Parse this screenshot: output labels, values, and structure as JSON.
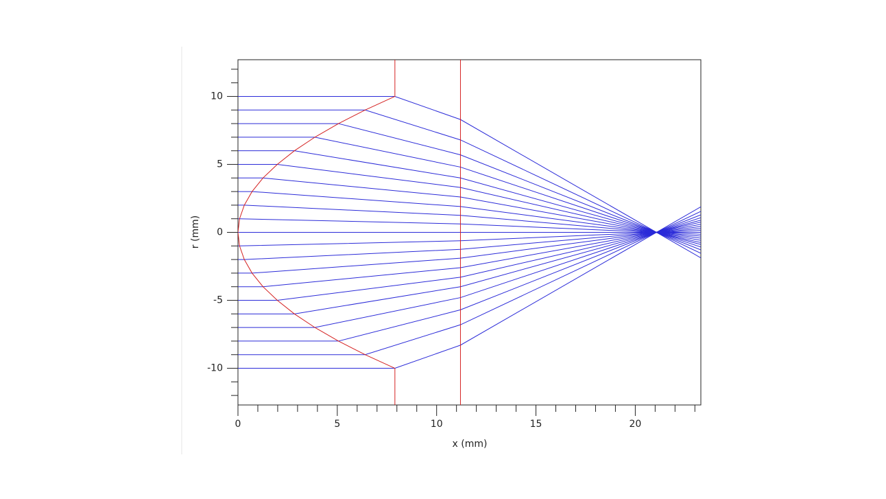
{
  "chart_data": {
    "type": "line",
    "xlabel": "x (mm)",
    "ylabel": "r (mm)",
    "xlim": [
      0,
      23.3
    ],
    "ylim": [
      -12.7,
      12.7
    ],
    "xticks": [
      0,
      5,
      10,
      15,
      20
    ],
    "yticks": [
      -10,
      -5,
      0,
      5,
      10
    ],
    "xminorticks": [
      1,
      2,
      3,
      4,
      6,
      7,
      8,
      9,
      11,
      12,
      13,
      14,
      16,
      17,
      18,
      19,
      21,
      22,
      23
    ],
    "yminorticks": [
      -12,
      -11,
      -9,
      -8,
      -7,
      -6,
      -4,
      -3,
      -2,
      -1,
      1,
      2,
      3,
      4,
      6,
      7,
      8,
      9,
      11,
      12
    ],
    "series": [
      {
        "color": "#2a2ad8",
        "x": [
          0,
          7.9,
          11.2,
          23.3
        ],
        "values": [
          10,
          10,
          8.3,
          -1.88
        ]
      },
      {
        "color": "#2a2ad8",
        "x": [
          0,
          6.4,
          11.2,
          23.3
        ],
        "values": [
          9,
          9,
          6.8,
          -1.54
        ]
      },
      {
        "color": "#2a2ad8",
        "x": [
          0,
          5.06,
          11.2,
          23.3
        ],
        "values": [
          8,
          8,
          5.7,
          -1.29
        ]
      },
      {
        "color": "#2a2ad8",
        "x": [
          0,
          3.87,
          11.2,
          23.3
        ],
        "values": [
          7,
          7,
          4.8,
          -1.08
        ]
      },
      {
        "color": "#2a2ad8",
        "x": [
          0,
          2.84,
          11.2,
          23.3
        ],
        "values": [
          6,
          6,
          4.0,
          -0.9
        ]
      },
      {
        "color": "#2a2ad8",
        "x": [
          0,
          1.98,
          11.2,
          23.3
        ],
        "values": [
          5,
          5,
          3.3,
          -0.75
        ]
      },
      {
        "color": "#2a2ad8",
        "x": [
          0,
          1.26,
          11.2,
          23.3
        ],
        "values": [
          4,
          4,
          2.6,
          -0.59
        ]
      },
      {
        "color": "#2a2ad8",
        "x": [
          0,
          0.71,
          11.2,
          23.3
        ],
        "values": [
          3,
          3,
          1.9,
          -0.43
        ]
      },
      {
        "color": "#2a2ad8",
        "x": [
          0,
          0.32,
          11.2,
          23.3
        ],
        "values": [
          2,
          2,
          1.25,
          -0.28
        ]
      },
      {
        "color": "#2a2ad8",
        "x": [
          0,
          0.08,
          11.2,
          23.3
        ],
        "values": [
          1,
          1,
          0.62,
          -0.14
        ]
      },
      {
        "color": "#2a2ad8",
        "x": [
          0,
          0,
          11.2,
          23.3
        ],
        "values": [
          0,
          0,
          0,
          0
        ]
      },
      {
        "color": "#2a2ad8",
        "x": [
          0,
          0.08,
          11.2,
          23.3
        ],
        "values": [
          -1,
          -1,
          -0.62,
          0.14
        ]
      },
      {
        "color": "#2a2ad8",
        "x": [
          0,
          0.32,
          11.2,
          23.3
        ],
        "values": [
          -2,
          -2,
          -1.25,
          0.28
        ]
      },
      {
        "color": "#2a2ad8",
        "x": [
          0,
          0.71,
          11.2,
          23.3
        ],
        "values": [
          -3,
          -3,
          -1.9,
          0.43
        ]
      },
      {
        "color": "#2a2ad8",
        "x": [
          0,
          1.26,
          11.2,
          23.3
        ],
        "values": [
          -4,
          -4,
          -2.6,
          0.59
        ]
      },
      {
        "color": "#2a2ad8",
        "x": [
          0,
          1.98,
          11.2,
          23.3
        ],
        "values": [
          -5,
          -5,
          -3.3,
          0.75
        ]
      },
      {
        "color": "#2a2ad8",
        "x": [
          0,
          2.84,
          11.2,
          23.3
        ],
        "values": [
          -6,
          -6,
          -4.0,
          0.9
        ]
      },
      {
        "color": "#2a2ad8",
        "x": [
          0,
          3.87,
          11.2,
          23.3
        ],
        "values": [
          -7,
          -7,
          -4.8,
          1.08
        ]
      },
      {
        "color": "#2a2ad8",
        "x": [
          0,
          5.06,
          11.2,
          23.3
        ],
        "values": [
          -8,
          -8,
          -5.7,
          1.29
        ]
      },
      {
        "color": "#2a2ad8",
        "x": [
          0,
          6.4,
          11.2,
          23.3
        ],
        "values": [
          -9,
          -9,
          -6.8,
          1.54
        ]
      },
      {
        "color": "#2a2ad8",
        "x": [
          0,
          7.9,
          11.2,
          23.3
        ],
        "values": [
          -10,
          -10,
          -8.3,
          1.88
        ]
      },
      {
        "color": "#d42020",
        "x": [
          7.9,
          6.4,
          5.06,
          3.87,
          2.84,
          1.98,
          1.26,
          0.71,
          0.32,
          0.08,
          0,
          0.08,
          0.32,
          0.71,
          1.26,
          1.98,
          2.84,
          3.87,
          5.06,
          6.4,
          7.9
        ],
        "values": [
          10,
          9,
          8,
          7,
          6,
          5,
          4,
          3,
          2,
          1,
          0,
          -1,
          -2,
          -3,
          -4,
          -5,
          -6,
          -7,
          -8,
          -9,
          -10
        ]
      },
      {
        "color": "#d42020",
        "x": [
          7.9,
          7.9
        ],
        "values": [
          10,
          12.7
        ]
      },
      {
        "color": "#d42020",
        "x": [
          7.9,
          7.9
        ],
        "values": [
          -10,
          -12.7
        ]
      },
      {
        "color": "#d42020",
        "x": [
          11.2,
          11.2
        ],
        "values": [
          -12.7,
          12.7
        ]
      }
    ]
  }
}
